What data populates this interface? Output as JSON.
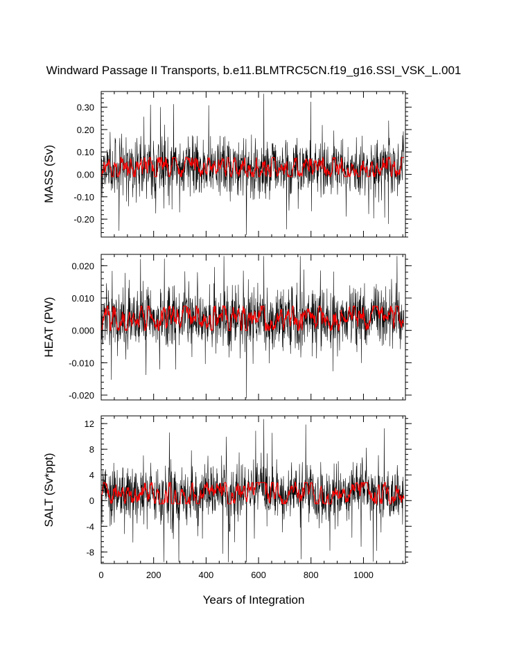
{
  "title": "Windward Passage II Transports, b.e11.BLMTRC5CN.f19_g16.SSI_VSK_L.001",
  "xlabel": "Years of Integration",
  "colors": {
    "raw_series": "#000000",
    "smoothed_series": "#ff0000",
    "axes": "#000000"
  },
  "chart_data": [
    {
      "type": "line",
      "panel": "mass",
      "ylabel": "MASS (Sv)",
      "xlim": [
        0,
        1160
      ],
      "ylim": [
        -0.28,
        0.37
      ],
      "xticks": [
        0,
        200,
        400,
        600,
        800,
        1000
      ],
      "xticklabels": [
        "0",
        "200",
        "400",
        "600",
        "800",
        "1000"
      ],
      "show_xticklabels": false,
      "yticks": [
        -0.2,
        -0.1,
        0.0,
        0.1,
        0.2,
        0.3
      ],
      "yticklabels": [
        "-0.20",
        "-0.10",
        "0.00",
        "0.10",
        "0.20",
        "0.30"
      ],
      "series": [
        {
          "kind": "raw",
          "mean": 0.03,
          "std": 0.065,
          "min": -0.27,
          "max": 0.36,
          "n_years": 1155
        },
        {
          "kind": "smoothed",
          "mean": 0.03,
          "range": [
            -0.01,
            0.075
          ]
        }
      ]
    },
    {
      "type": "line",
      "panel": "heat",
      "ylabel": "HEAT (PW)",
      "xlim": [
        0,
        1160
      ],
      "ylim": [
        -0.0215,
        0.0235
      ],
      "xticks": [
        0,
        200,
        400,
        600,
        800,
        1000
      ],
      "xticklabels": [
        "0",
        "200",
        "400",
        "600",
        "800",
        "1000"
      ],
      "show_xticklabels": false,
      "yticks": [
        -0.02,
        -0.01,
        0.0,
        0.01,
        0.02
      ],
      "yticklabels": [
        "-0.020",
        "-0.010",
        "0.000",
        "0.010",
        "0.020"
      ],
      "series": [
        {
          "kind": "raw",
          "mean": 0.0035,
          "std": 0.0048,
          "min": -0.021,
          "max": 0.023,
          "n_years": 1155
        },
        {
          "kind": "smoothed",
          "mean": 0.0035,
          "range": [
            0.0,
            0.0075
          ]
        }
      ]
    },
    {
      "type": "line",
      "panel": "salt",
      "ylabel": "SALT (Sv*ppt)",
      "xlim": [
        0,
        1160
      ],
      "ylim": [
        -9.8,
        13.2
      ],
      "xticks": [
        0,
        200,
        400,
        600,
        800,
        1000
      ],
      "xticklabels": [
        "0",
        "200",
        "400",
        "600",
        "800",
        "1000"
      ],
      "show_xticklabels": true,
      "yticks": [
        -8,
        -4,
        0,
        4,
        8,
        12
      ],
      "yticklabels": [
        "-8",
        "-4",
        "0",
        "4",
        "8",
        "12"
      ],
      "series": [
        {
          "kind": "raw",
          "mean": 1.1,
          "std": 2.4,
          "min": -9.6,
          "max": 12.7,
          "n_years": 1155
        },
        {
          "kind": "smoothed",
          "mean": 1.1,
          "range": [
            -0.5,
            2.8
          ]
        }
      ]
    }
  ]
}
